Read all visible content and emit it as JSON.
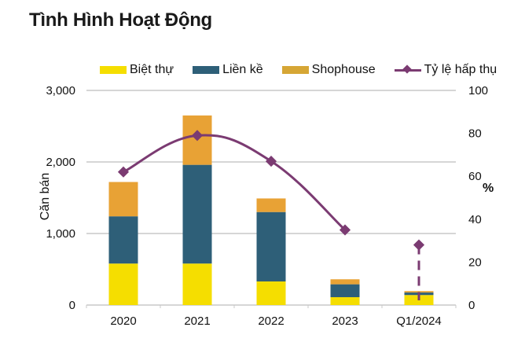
{
  "title": "Tình Hình Hoạt Động",
  "colors": {
    "biet_thu": "#f5de00",
    "lien_ke": "#2e5f78",
    "shophouse": "#e8a235",
    "line": "#7b3b72",
    "grid": "#c8c8c8"
  },
  "chart_data": {
    "type": "bar",
    "title": "Tình Hình Hoạt Động",
    "categories": [
      "2020",
      "2021",
      "2022",
      "2023",
      "Q1/2024"
    ],
    "series": [
      {
        "name": "Biệt thự",
        "type": "stacked-bar",
        "axis": "left",
        "values": [
          580,
          580,
          330,
          110,
          140
        ]
      },
      {
        "name": "Liền kề",
        "type": "stacked-bar",
        "axis": "left",
        "values": [
          660,
          1380,
          970,
          180,
          35
        ]
      },
      {
        "name": "Shophouse",
        "type": "stacked-bar",
        "axis": "left",
        "values": [
          480,
          690,
          190,
          70,
          20
        ]
      },
      {
        "name": "Tỷ lệ hấp thụ",
        "type": "line",
        "axis": "right",
        "values": [
          62,
          79,
          67,
          35,
          28
        ]
      }
    ],
    "ylabel": "Căn bán",
    "y2label": "%",
    "ylim": [
      0,
      3000
    ],
    "y2lim": [
      0,
      100
    ],
    "yticks": [
      "0",
      "1,000",
      "2,000",
      "3,000"
    ],
    "y2ticks": [
      "0",
      "20",
      "40",
      "60",
      "80",
      "100"
    ],
    "grid": true,
    "legend": "top"
  }
}
